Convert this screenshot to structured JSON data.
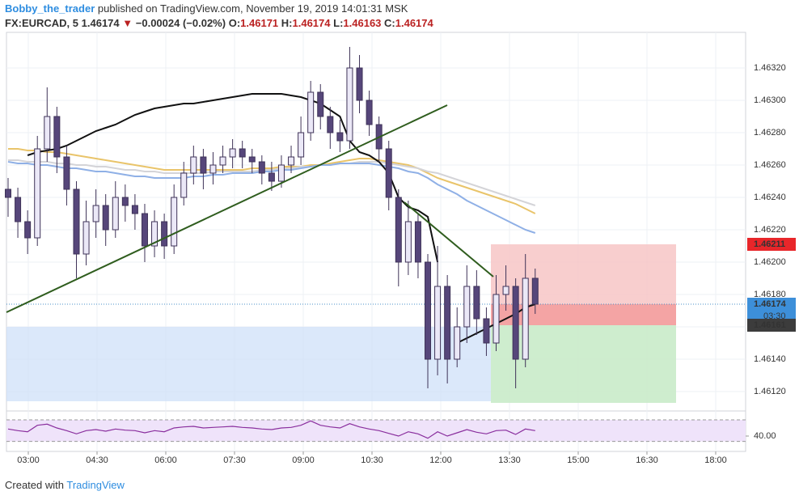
{
  "header": {
    "author": "Bobby_the_trader",
    "published": "published on TradingView.com, November 19, 2019 14:01:31 MSK"
  },
  "legend": {
    "symbol": "FX:EURCAD, 5",
    "last": "1.46174",
    "arrow": "▼",
    "change": "−0.00024 (−0.02%)",
    "o_label": "O:",
    "o": "1.46171",
    "h_label": "H:",
    "h": "1.46174",
    "l_label": "L:",
    "l": "1.46163",
    "c_label": "C:",
    "c": "1.46174"
  },
  "footer": {
    "created": "Created with",
    "brand": "TradingView"
  },
  "chart_data": {
    "type": "candlestick",
    "up_color": "#ebe8f7",
    "down_color": "#56467a",
    "wick_color": "#3f3358",
    "ylim": [
      1.461095,
      1.46342
    ],
    "yticks": [
      {
        "value": 1.4612,
        "label": "1.46120"
      },
      {
        "value": 1.4614,
        "label": "1.46140"
      },
      {
        "value": 1.4616,
        "label": "1.46160"
      },
      {
        "value": 1.4618,
        "label": "1.46180"
      },
      {
        "value": 1.462,
        "label": "1.46200"
      },
      {
        "value": 1.4622,
        "label": "1.46220"
      },
      {
        "value": 1.4624,
        "label": "1.46240"
      },
      {
        "value": 1.4626,
        "label": "1.46260"
      },
      {
        "value": 1.4628,
        "label": "1.46280"
      },
      {
        "value": 1.463,
        "label": "1.46300"
      },
      {
        "value": 1.4632,
        "label": "1.46320"
      }
    ],
    "xlim": [
      151.4,
      1119.2
    ],
    "xticks": [
      {
        "value": 180,
        "label": "03:00"
      },
      {
        "value": 270,
        "label": "04:30"
      },
      {
        "value": 360,
        "label": "06:00"
      },
      {
        "value": 450,
        "label": "07:30"
      },
      {
        "value": 540,
        "label": "09:00"
      },
      {
        "value": 630,
        "label": "10:30"
      },
      {
        "value": 720,
        "label": "12:00"
      },
      {
        "value": 810,
        "label": "13:30"
      },
      {
        "value": 900,
        "label": "15:00"
      },
      {
        "value": 990,
        "label": "16:30"
      },
      {
        "value": 1080,
        "label": "18:00"
      }
    ],
    "grid": true,
    "candles": [
      [
        1.46245,
        1.46252,
        1.46228,
        1.4624
      ],
      [
        1.4624,
        1.46246,
        1.46215,
        1.46225
      ],
      [
        1.46225,
        1.46232,
        1.46205,
        1.46215
      ],
      [
        1.46215,
        1.46278,
        1.4621,
        1.4627
      ],
      [
        1.4627,
        1.46308,
        1.46262,
        1.4629
      ],
      [
        1.4629,
        1.46296,
        1.46255,
        1.46265
      ],
      [
        1.46265,
        1.46272,
        1.46235,
        1.46245
      ],
      [
        1.46245,
        1.4625,
        1.4619,
        1.46205
      ],
      [
        1.46205,
        1.46238,
        1.46198,
        1.46225
      ],
      [
        1.46225,
        1.46245,
        1.46215,
        1.46235
      ],
      [
        1.46235,
        1.46242,
        1.4621,
        1.4622
      ],
      [
        1.4622,
        1.4625,
        1.46215,
        1.4624
      ],
      [
        1.4624,
        1.46248,
        1.46225,
        1.46235
      ],
      [
        1.46235,
        1.46242,
        1.4622,
        1.4623
      ],
      [
        1.4623,
        1.46236,
        1.462,
        1.4621
      ],
      [
        1.4621,
        1.46232,
        1.46203,
        1.46225
      ],
      [
        1.46225,
        1.4623,
        1.46202,
        1.4621
      ],
      [
        1.4621,
        1.46248,
        1.46205,
        1.4624
      ],
      [
        1.4624,
        1.46262,
        1.46235,
        1.46255
      ],
      [
        1.46255,
        1.46272,
        1.46248,
        1.46265
      ],
      [
        1.46265,
        1.4627,
        1.46245,
        1.46255
      ],
      [
        1.46255,
        1.46268,
        1.46248,
        1.4626
      ],
      [
        1.4626,
        1.46272,
        1.46255,
        1.46265
      ],
      [
        1.46265,
        1.46276,
        1.46258,
        1.4627
      ],
      [
        1.4627,
        1.46275,
        1.46258,
        1.46265
      ],
      [
        1.46265,
        1.4627,
        1.46255,
        1.46262
      ],
      [
        1.46262,
        1.46266,
        1.46248,
        1.46255
      ],
      [
        1.46255,
        1.46262,
        1.46244,
        1.4625
      ],
      [
        1.4625,
        1.46266,
        1.46246,
        1.4626
      ],
      [
        1.4626,
        1.46272,
        1.46255,
        1.46265
      ],
      [
        1.46265,
        1.4629,
        1.4626,
        1.4628
      ],
      [
        1.4628,
        1.46312,
        1.46275,
        1.46305
      ],
      [
        1.46305,
        1.4631,
        1.46282,
        1.4629
      ],
      [
        1.4629,
        1.46296,
        1.4627,
        1.4628
      ],
      [
        1.4628,
        1.46288,
        1.46268,
        1.46275
      ],
      [
        1.46275,
        1.46333,
        1.4627,
        1.4632
      ],
      [
        1.4632,
        1.46328,
        1.46292,
        1.463
      ],
      [
        1.463,
        1.46306,
        1.46278,
        1.46285
      ],
      [
        1.46285,
        1.4629,
        1.46262,
        1.4627
      ],
      [
        1.4627,
        1.46275,
        1.46232,
        1.4624
      ],
      [
        1.4624,
        1.46245,
        1.46185,
        1.462
      ],
      [
        1.462,
        1.46238,
        1.46192,
        1.46225
      ],
      [
        1.46225,
        1.4623,
        1.4619,
        1.462
      ],
      [
        1.462,
        1.46205,
        1.46122,
        1.4614
      ],
      [
        1.4614,
        1.4621,
        1.4613,
        1.46185
      ],
      [
        1.46185,
        1.46192,
        1.46125,
        1.4614
      ],
      [
        1.4614,
        1.46172,
        1.46135,
        1.4616
      ],
      [
        1.4616,
        1.46198,
        1.4615,
        1.46185
      ],
      [
        1.46185,
        1.46195,
        1.46155,
        1.46165
      ],
      [
        1.46165,
        1.46172,
        1.46142,
        1.4615
      ],
      [
        1.4615,
        1.46192,
        1.46145,
        1.4618
      ],
      [
        1.4618,
        1.46198,
        1.4617,
        1.46185
      ],
      [
        1.46185,
        1.4619,
        1.46122,
        1.4614
      ],
      [
        1.4614,
        1.46205,
        1.46135,
        1.4619
      ],
      [
        1.4619,
        1.46196,
        1.46168,
        1.46174
      ]
    ],
    "lines": [
      {
        "color": "#e9c46a",
        "values": [
          1.4627,
          1.4627,
          1.46269,
          1.46269,
          1.46268,
          1.46268,
          1.46267,
          1.46266,
          1.46265,
          1.46264,
          1.46263,
          1.46262,
          1.46261,
          1.4626,
          1.46259,
          1.46258,
          1.46257,
          1.46257,
          1.46257,
          1.46257,
          1.46257,
          1.46257,
          1.46257,
          1.46257,
          1.46257,
          1.46258,
          1.46258,
          1.46258,
          1.46259,
          1.46259,
          1.46259,
          1.4626,
          1.4626,
          1.46261,
          1.46262,
          1.46263,
          1.46264,
          1.46264,
          1.46263,
          1.46262,
          1.46261,
          1.4626,
          1.46258,
          1.46255,
          1.46252,
          1.4625,
          1.46248,
          1.46246,
          1.46244,
          1.46242,
          1.4624,
          1.46238,
          1.46236,
          1.46233,
          1.4623
        ]
      },
      {
        "color": "#d4d4d8",
        "values": [
          1.46263,
          1.46263,
          1.46262,
          1.46262,
          1.46262,
          1.46261,
          1.46261,
          1.4626,
          1.4626,
          1.46259,
          1.46259,
          1.46258,
          1.46257,
          1.46257,
          1.46256,
          1.46256,
          1.46255,
          1.46255,
          1.46255,
          1.46255,
          1.46255,
          1.46256,
          1.46256,
          1.46256,
          1.46256,
          1.46256,
          1.46257,
          1.46257,
          1.46258,
          1.46258,
          1.46259,
          1.46259,
          1.4626,
          1.4626,
          1.46261,
          1.46261,
          1.46262,
          1.46262,
          1.46262,
          1.46261,
          1.4626,
          1.46259,
          1.46258,
          1.46256,
          1.46255,
          1.46253,
          1.46251,
          1.46249,
          1.46247,
          1.46245,
          1.46243,
          1.46241,
          1.46239,
          1.46237,
          1.46235
        ]
      },
      {
        "color": "#8fb0e6",
        "values": [
          1.46262,
          1.46261,
          1.46261,
          1.4626,
          1.4626,
          1.46259,
          1.46258,
          1.46258,
          1.46257,
          1.46256,
          1.46256,
          1.46255,
          1.46254,
          1.46253,
          1.46253,
          1.46252,
          1.46252,
          1.46252,
          1.46252,
          1.46253,
          1.46253,
          1.46254,
          1.46254,
          1.46255,
          1.46255,
          1.46255,
          1.46256,
          1.46256,
          1.46257,
          1.46257,
          1.46258,
          1.46259,
          1.4626,
          1.4626,
          1.46261,
          1.46261,
          1.46261,
          1.46261,
          1.4626,
          1.46259,
          1.46258,
          1.46256,
          1.46255,
          1.46252,
          1.46248,
          1.46245,
          1.46242,
          1.46238,
          1.46235,
          1.46232,
          1.46229,
          1.46226,
          1.46223,
          1.4622,
          1.46218
        ]
      },
      {
        "color": "#111111",
        "values": [
          null,
          null,
          1.46266,
          1.46268,
          1.46269,
          1.4627,
          1.46272,
          1.46275,
          1.46278,
          1.46281,
          1.46283,
          1.46285,
          1.46288,
          1.46291,
          1.46293,
          1.46295,
          1.46296,
          1.46297,
          1.46298,
          1.46298,
          1.46299,
          1.463,
          1.46301,
          1.46302,
          1.46303,
          1.46304,
          1.46304,
          1.46304,
          1.46304,
          1.46303,
          1.46302,
          1.463,
          1.46298,
          1.46294,
          1.4629,
          1.46275,
          1.46268,
          1.46266,
          1.46262,
          1.46255,
          1.4624,
          1.46234,
          1.46232,
          1.46228,
          1.462,
          null,
          1.4615,
          1.46153,
          1.46156,
          1.46159,
          1.46162,
          1.46165,
          1.46168,
          1.46172,
          1.46174
        ]
      }
    ],
    "trendlines": [
      {
        "color": "#2f5d1e",
        "y": [
          1.46169,
          1.46297
        ]
      },
      {
        "color": "#2f5d1e",
        "y": [
          1.46237,
          1.46191
        ]
      }
    ],
    "position": {
      "stop": 1.46211,
      "entry": 1.46161,
      "target": 1.46113
    },
    "zone": {
      "top": 1.4616,
      "bottom": 1.46114
    },
    "last_price": 1.46174,
    "countdown": "03:30",
    "rsi": {
      "color": "#8a2f9e",
      "ylim": [
        23.5,
        83.5
      ],
      "bands": [
        70,
        30
      ],
      "yticks": [
        {
          "value": 40,
          "label": "40.00"
        }
      ],
      "values": [
        53,
        50,
        48,
        60,
        62,
        55,
        50,
        44,
        50,
        52,
        49,
        53,
        51,
        50,
        46,
        50,
        48,
        55,
        57,
        58,
        55,
        56,
        57,
        58,
        56,
        55,
        53,
        52,
        55,
        56,
        60,
        68,
        60,
        57,
        55,
        63,
        57,
        53,
        50,
        45,
        40,
        48,
        44,
        36,
        48,
        40,
        46,
        52,
        47,
        44,
        50,
        51,
        43,
        53,
        50
      ]
    }
  }
}
